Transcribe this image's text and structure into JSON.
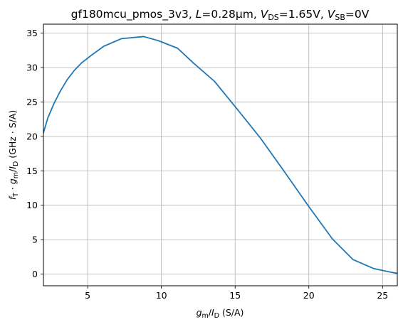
{
  "chart_data": {
    "type": "line",
    "title": "gf180mcu_pmos_3v3, L=0.28µm, V_DS=1.65V, V_SB=0V",
    "title_parts": {
      "device": "gf180mcu_pmos_3v3, ",
      "l_sym": "L",
      "l_val": "=0.28µm, ",
      "vds_sym": "V",
      "vds_sub": "DS",
      "vds_val": "=1.65V, ",
      "vsb_sym": "V",
      "vsb_sub": "SB",
      "vsb_val": "=0V"
    },
    "xlabel": "g_m/I_D (S/A)",
    "xlabel_parts": {
      "g": "g",
      "m": "m",
      "slash": "/",
      "I": "I",
      "D": "D",
      "unit": " (S/A)"
    },
    "ylabel": "f_T · g_m/I_D (GHz · S/A)",
    "ylabel_parts": {
      "f": "f",
      "T": "T",
      "dot": " · ",
      "g": "g",
      "m": "m",
      "slash": "/",
      "I": "I",
      "D": "D",
      "unit": " (GHz · S/A)"
    },
    "xlim": [
      2.0,
      26.0
    ],
    "ylim": [
      -1.7,
      36.3
    ],
    "xticks": [
      5,
      10,
      15,
      20,
      25
    ],
    "yticks": [
      0,
      5,
      10,
      15,
      20,
      25,
      30,
      35
    ],
    "grid": true,
    "line_color": "#1f77b4",
    "grid_color": "#b0b0b0",
    "series": [
      {
        "x": [
          2.0,
          2.3,
          2.7,
          3.1,
          3.6,
          4.1,
          4.6,
          5.2,
          6.1,
          7.3,
          8.8,
          9.8,
          11.1,
          12.2,
          13.6,
          15.2,
          16.7,
          18.3,
          20.0,
          21.6,
          23.0,
          24.4,
          25.5,
          26.0
        ],
        "y": [
          20.5,
          22.7,
          24.7,
          26.4,
          28.2,
          29.6,
          30.7,
          31.7,
          33.1,
          34.2,
          34.5,
          33.9,
          32.8,
          30.6,
          28.0,
          23.8,
          19.8,
          15.0,
          9.8,
          5.1,
          2.1,
          0.8,
          0.3,
          0.1
        ]
      }
    ]
  }
}
